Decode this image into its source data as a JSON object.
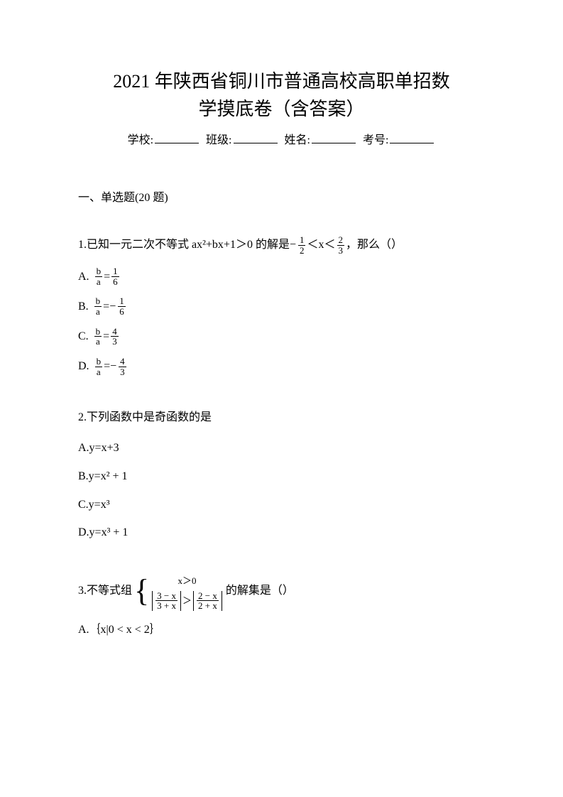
{
  "title_line1": "2021 年陕西省铜川市普通高校高职单招数",
  "title_line2": "学摸底卷（含答案）",
  "info": {
    "school_label": "学校:",
    "class_label": "班级:",
    "name_label": "姓名:",
    "exam_no_label": "考号:"
  },
  "section_heading": "一、单选题(20 题)",
  "q1": {
    "stem_prefix": "1.已知一元二次不等式 ax²+bx+1＞0 的解是 ",
    "range_mid": " ＜x＜ ",
    "stem_suffix": "，那么（）",
    "left_frac": {
      "neg": "−",
      "num": "1",
      "den": "2"
    },
    "right_frac": {
      "num": "2",
      "den": "3"
    },
    "options": {
      "A": {
        "label": "A.",
        "lhs_num": "b",
        "lhs_den": "a",
        "eq": " = ",
        "rhs_neg": "",
        "rhs_num": "1",
        "rhs_den": "6"
      },
      "B": {
        "label": "B.",
        "lhs_num": "b",
        "lhs_den": "a",
        "eq": " = ",
        "rhs_neg": "−",
        "rhs_num": "1",
        "rhs_den": "6"
      },
      "C": {
        "label": "C.",
        "lhs_num": "b",
        "lhs_den": "a",
        "eq": " = ",
        "rhs_neg": "",
        "rhs_num": "4",
        "rhs_den": "3"
      },
      "D": {
        "label": "D.",
        "lhs_num": "b",
        "lhs_den": "a",
        "eq": " = ",
        "rhs_neg": "−",
        "rhs_num": "4",
        "rhs_den": "3"
      }
    }
  },
  "q2": {
    "stem": "2.下列函数中是奇函数的是",
    "A": "A.y=x+3",
    "B": "B.y=x² + 1",
    "C": "C.y=x³",
    "D": "D.y=x³ + 1"
  },
  "q3": {
    "stem_prefix": "3.不等式组 ",
    "stem_suffix": " 的解集是（）",
    "sys": {
      "r1": "x＞0",
      "r2_left": {
        "num": "3 − x",
        "den": "3 + x"
      },
      "r2_op": "＞",
      "r2_right": {
        "num": "2 − x",
        "den": "2 + x"
      }
    },
    "A": "A.｛x|0 < x < 2｝"
  }
}
